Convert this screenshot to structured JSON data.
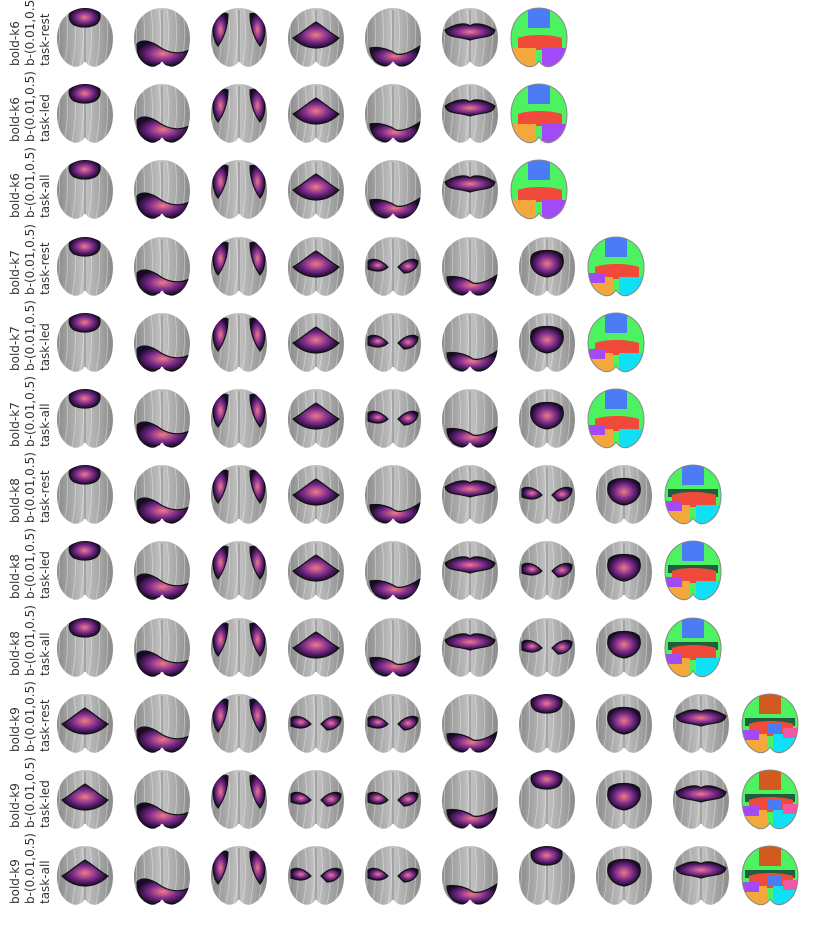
{
  "colors": {
    "brain_gray_light": "#c4c4c4",
    "brain_gray_dark": "#8a8a8a",
    "heat_low": "#1a0a2a",
    "heat_mid": "#7a2a8a",
    "heat_high": "#f07a8a",
    "outline": "#111111",
    "cluster_palette": [
      "#4b7bf5",
      "#4df260",
      "#ef4a3a",
      "#f3a83c",
      "#a24af5",
      "#0fe0f5",
      "#1f5f3f",
      "#d25a1f",
      "#f05aa5"
    ]
  },
  "icon": "brain-map-icon",
  "rows": [
    {
      "label_a": "bold-k6",
      "label_b": "b-(0.01,0.5)",
      "label_c": "task-rest",
      "k": 6,
      "patterns": [
        "front",
        "post",
        "side",
        "mid",
        "post2",
        "band"
      ]
    },
    {
      "label_a": "bold-k6",
      "label_b": "b-(0.01,0.5)",
      "label_c": "task-led",
      "k": 6,
      "patterns": [
        "front",
        "post",
        "side",
        "mid",
        "post2",
        "band"
      ]
    },
    {
      "label_a": "bold-k6",
      "label_b": "b-(0.01,0.5)",
      "label_c": "task-all",
      "k": 6,
      "patterns": [
        "front",
        "post",
        "side",
        "mid",
        "post2",
        "band"
      ]
    },
    {
      "label_a": "bold-k7",
      "label_b": "b-(0.01,0.5)",
      "label_c": "task-rest",
      "k": 7,
      "patterns": [
        "front",
        "post",
        "side",
        "mid",
        "lat",
        "post2",
        "center"
      ]
    },
    {
      "label_a": "bold-k7",
      "label_b": "b-(0.01,0.5)",
      "label_c": "task-led",
      "k": 7,
      "patterns": [
        "front",
        "post",
        "side",
        "mid",
        "lat",
        "post2",
        "center"
      ]
    },
    {
      "label_a": "bold-k7",
      "label_b": "b-(0.01,0.5)",
      "label_c": "task-all",
      "k": 7,
      "patterns": [
        "front",
        "post",
        "side",
        "mid",
        "lat",
        "post2",
        "center"
      ]
    },
    {
      "label_a": "bold-k8",
      "label_b": "b-(0.01,0.5)",
      "label_c": "task-rest",
      "k": 8,
      "patterns": [
        "front",
        "post",
        "side",
        "mid",
        "post2",
        "band",
        "lat",
        "center"
      ]
    },
    {
      "label_a": "bold-k8",
      "label_b": "b-(0.01,0.5)",
      "label_c": "task-led",
      "k": 8,
      "patterns": [
        "front",
        "post",
        "side",
        "mid",
        "post2",
        "band",
        "lat",
        "center"
      ]
    },
    {
      "label_a": "bold-k8",
      "label_b": "b-(0.01,0.5)",
      "label_c": "task-all",
      "k": 8,
      "patterns": [
        "front",
        "post",
        "side",
        "mid",
        "post2",
        "band",
        "lat",
        "center"
      ]
    },
    {
      "label_a": "bold-k9",
      "label_b": "b-(0.01,0.5)",
      "label_c": "task-rest",
      "k": 9,
      "patterns": [
        "mid",
        "post",
        "side",
        "lat",
        "lat",
        "post2",
        "front",
        "center",
        "band"
      ]
    },
    {
      "label_a": "bold-k9",
      "label_b": "b-(0.01,0.5)",
      "label_c": "task-led",
      "k": 9,
      "patterns": [
        "mid",
        "post",
        "side",
        "lat",
        "lat",
        "post2",
        "front",
        "center",
        "band"
      ]
    },
    {
      "label_a": "bold-k9",
      "label_b": "b-(0.01,0.5)",
      "label_c": "task-all",
      "k": 9,
      "patterns": [
        "mid",
        "post",
        "side",
        "lat",
        "lat",
        "post2",
        "front",
        "center",
        "band"
      ]
    }
  ]
}
